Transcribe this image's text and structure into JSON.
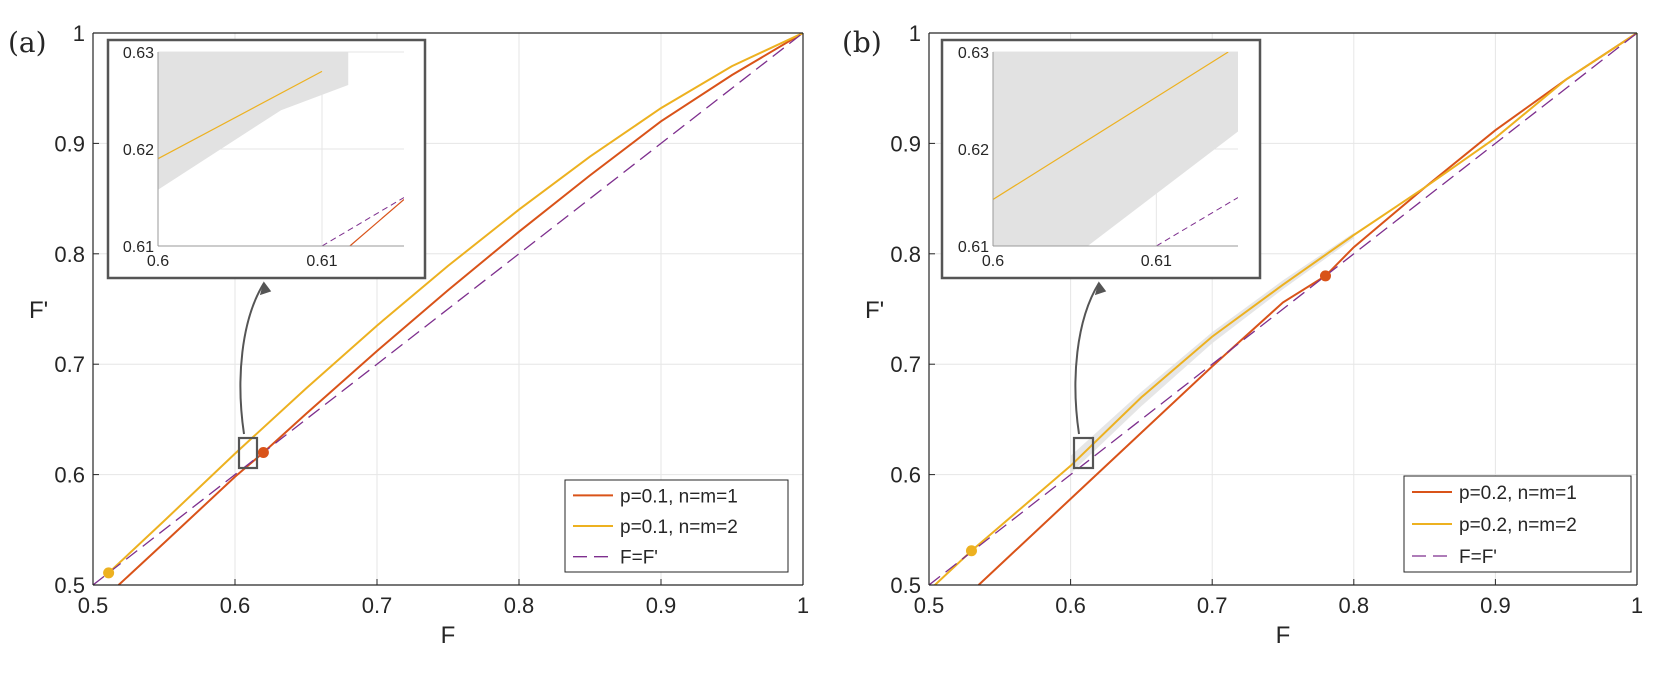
{
  "colors": {
    "red": "#d95319",
    "yellow": "#edb120",
    "purple": "#7e2f8e",
    "band": "#e2e2e2",
    "grid": "#e6e6e6",
    "axis": "#262626",
    "boxes": "#555555"
  },
  "chart_data": [
    {
      "type": "line",
      "panel_label": "(a)",
      "xlabel": "F",
      "ylabel": "F'",
      "xlim": [
        0.5,
        1
      ],
      "ylim": [
        0.5,
        1
      ],
      "xticks": [
        "0.5",
        "0.6",
        "0.7",
        "0.8",
        "0.9",
        "1"
      ],
      "yticks": [
        "0.5",
        "0.6",
        "0.7",
        "0.8",
        "0.9",
        "1"
      ],
      "grid": true,
      "legend_position": "bottom-right",
      "series": [
        {
          "name": "p=0.1, n=m=1",
          "color_key": "red",
          "style": "solid",
          "x": [
            0.518,
            0.55,
            0.6,
            0.62,
            0.65,
            0.7,
            0.75,
            0.8,
            0.85,
            0.9,
            0.95,
            1.0
          ],
          "y": [
            0.5,
            0.538,
            0.598,
            0.62,
            0.655,
            0.712,
            0.767,
            0.82,
            0.871,
            0.92,
            0.962,
            1.0
          ]
        },
        {
          "name": "p=0.1, n=m=2",
          "color_key": "yellow",
          "style": "solid",
          "x": [
            0.511,
            0.55,
            0.6,
            0.65,
            0.7,
            0.75,
            0.8,
            0.85,
            0.9,
            0.95,
            1.0
          ],
          "y": [
            0.511,
            0.558,
            0.619,
            0.678,
            0.735,
            0.789,
            0.84,
            0.888,
            0.932,
            0.97,
            1.0
          ]
        },
        {
          "name": "F=F'",
          "color_key": "purple",
          "style": "dashed",
          "x": [
            0.5,
            1.0
          ],
          "y": [
            0.5,
            1.0
          ]
        }
      ],
      "markers": [
        {
          "x": 0.62,
          "y": 0.62,
          "color_key": "red"
        },
        {
          "x": 0.511,
          "y": 0.511,
          "color_key": "yellow"
        }
      ],
      "inset": {
        "xlim": [
          0.6,
          0.615
        ],
        "ylim": [
          0.61,
          0.63
        ],
        "xticks": [
          "0.6",
          "0.61"
        ],
        "yticks": [
          "0.61",
          "0.62",
          "0.63"
        ],
        "band": {
          "x": [
            0.6,
            0.6,
            0.6075,
            0.6116
          ],
          "y_top": [
            0.6238,
            0.63,
            0.63,
            0.63
          ],
          "y_bottom": [
            0.6158,
            0.6158,
            0.624,
            0.6266
          ]
        },
        "yellow_line": {
          "x": [
            0.6,
            0.61
          ],
          "y": [
            0.619,
            0.628
          ]
        },
        "red_line": {
          "x": [
            0.6117,
            0.615
          ],
          "y": [
            0.61,
            0.6148
          ]
        },
        "diag_line": {
          "x": [
            0.61,
            0.615
          ],
          "y": [
            0.61,
            0.615
          ]
        }
      }
    },
    {
      "type": "line",
      "panel_label": "(b)",
      "xlabel": "F",
      "ylabel": "F'",
      "xlim": [
        0.5,
        1
      ],
      "ylim": [
        0.5,
        1
      ],
      "xticks": [
        "0.5",
        "0.6",
        "0.7",
        "0.8",
        "0.9",
        "1"
      ],
      "yticks": [
        "0.5",
        "0.6",
        "0.7",
        "0.8",
        "0.9",
        "1"
      ],
      "grid": true,
      "legend_position": "bottom-right",
      "series": [
        {
          "name": "p=0.2, n=m=1",
          "color_key": "red",
          "style": "solid",
          "x": [
            0.535,
            0.55,
            0.6,
            0.65,
            0.7,
            0.75,
            0.78,
            0.8,
            0.85,
            0.9,
            0.95,
            1.0
          ],
          "y": [
            0.5,
            0.518,
            0.578,
            0.638,
            0.698,
            0.756,
            0.78,
            0.806,
            0.86,
            0.912,
            0.958,
            1.0
          ]
        },
        {
          "name": "p=0.2, n=m=2",
          "color_key": "yellow",
          "style": "solid",
          "x": [
            0.5,
            0.53,
            0.55,
            0.6,
            0.65,
            0.7,
            0.75,
            0.8,
            0.85,
            0.9,
            0.95,
            1.0
          ],
          "y": [
            0.495,
            0.531,
            0.553,
            0.608,
            0.67,
            0.725,
            0.772,
            0.817,
            0.86,
            0.905,
            0.958,
            1.0
          ]
        },
        {
          "name": "F=F'",
          "color_key": "purple",
          "style": "dashed",
          "x": [
            0.5,
            1.0
          ],
          "y": [
            0.5,
            1.0
          ]
        }
      ],
      "band": {
        "x": [
          0.6,
          0.65,
          0.7,
          0.75,
          0.8
        ],
        "y_top": [
          0.617,
          0.675,
          0.729,
          0.776,
          0.819
        ],
        "y_bottom": [
          0.601,
          0.662,
          0.719,
          0.768,
          0.814
        ]
      },
      "markers": [
        {
          "x": 0.78,
          "y": 0.78,
          "color_key": "red"
        },
        {
          "x": 0.53,
          "y": 0.531,
          "color_key": "yellow"
        }
      ],
      "inset": {
        "xlim": [
          0.6,
          0.615
        ],
        "ylim": [
          0.61,
          0.63
        ],
        "xticks": [
          "0.6",
          "0.61"
        ],
        "yticks": [
          "0.61",
          "0.62",
          "0.63"
        ],
        "band": {
          "x": [
            0.6,
            0.6,
            0.6058,
            0.615,
            0.615
          ],
          "y_top": [
            0.6282,
            0.63,
            0.63,
            0.63,
            0.63
          ],
          "y_bottom": [
            0.61,
            0.61,
            0.61,
            0.6218,
            0.6218
          ]
        },
        "yellow_line": {
          "x": [
            0.6,
            0.6144
          ],
          "y": [
            0.6148,
            0.63
          ]
        },
        "red_line": null,
        "diag_line": {
          "x": [
            0.61,
            0.615
          ],
          "y": [
            0.61,
            0.615
          ]
        }
      }
    }
  ]
}
